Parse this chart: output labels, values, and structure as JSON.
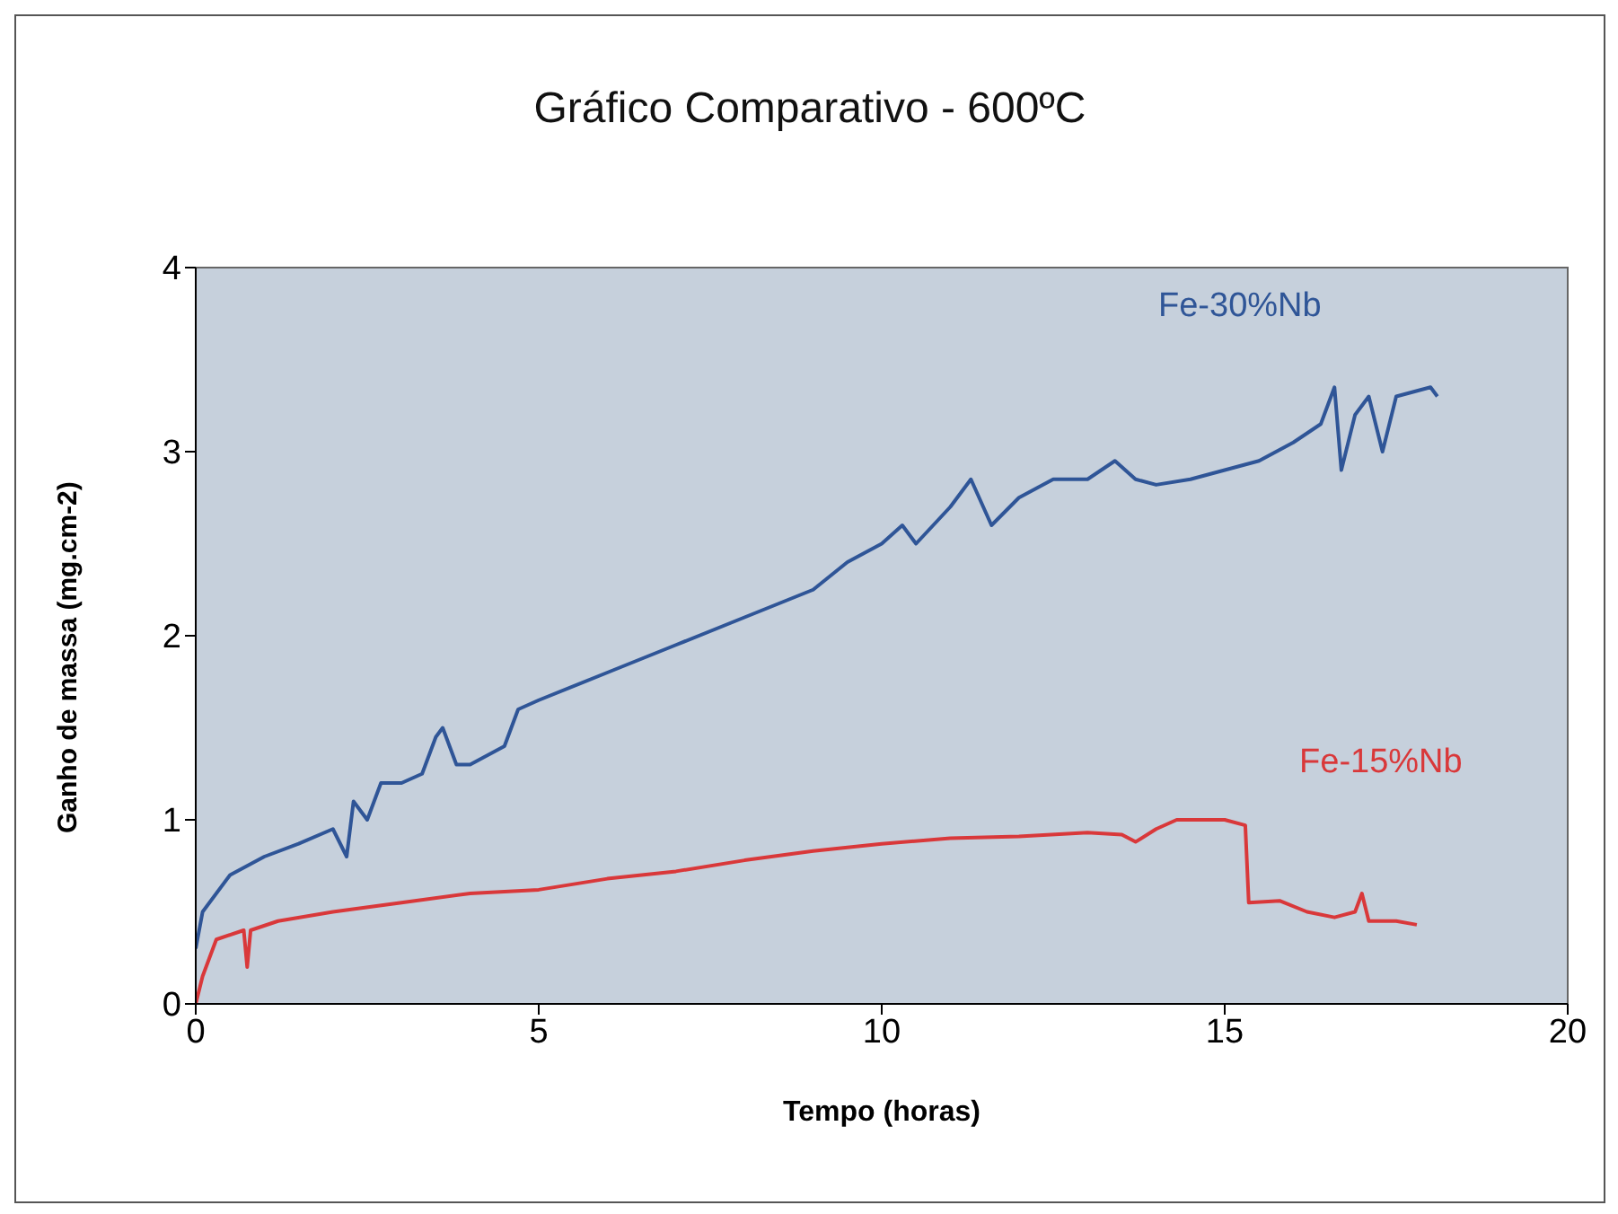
{
  "chart_data": {
    "type": "line",
    "title": "Gráfico Comparativo - 600ºC",
    "xlabel": "Tempo (horas)",
    "ylabel": "Ganho de massa  (mg.cm-2)",
    "xlim": [
      0,
      20
    ],
    "xticks": [
      0,
      5,
      10,
      15,
      20
    ],
    "ylim": [
      0,
      4
    ],
    "yticks": [
      0,
      1,
      2,
      3,
      4
    ],
    "legend": false,
    "marker": "none",
    "line_style": "solid",
    "series": [
      {
        "name": "Fe-30%Nb",
        "color": "#2f5597",
        "x": [
          0,
          0.1,
          0.5,
          1,
          1.5,
          2,
          2.2,
          2.3,
          2.5,
          2.7,
          3,
          3.3,
          3.5,
          3.6,
          3.8,
          4,
          4.5,
          4.7,
          5,
          6,
          7,
          8,
          9,
          9.5,
          10,
          10.3,
          10.5,
          11,
          11.3,
          11.6,
          12,
          12.5,
          13,
          13.4,
          13.7,
          14,
          14.5,
          15,
          15.5,
          16,
          16.4,
          16.6,
          16.7,
          16.9,
          17.1,
          17.3,
          17.5,
          18,
          18.1
        ],
        "values": [
          0.3,
          0.5,
          0.7,
          0.8,
          0.87,
          0.95,
          0.8,
          1.1,
          1.0,
          1.2,
          1.2,
          1.25,
          1.45,
          1.5,
          1.3,
          1.3,
          1.4,
          1.6,
          1.65,
          1.8,
          1.95,
          2.1,
          2.25,
          2.4,
          2.5,
          2.6,
          2.5,
          2.7,
          2.85,
          2.6,
          2.75,
          2.85,
          2.85,
          2.95,
          2.85,
          2.82,
          2.85,
          2.9,
          2.95,
          3.05,
          3.15,
          3.35,
          2.9,
          3.2,
          3.3,
          3.0,
          3.3,
          3.35,
          3.3
        ]
      },
      {
        "name": "Fe-15%Nb",
        "color": "#d9383a",
        "x": [
          0,
          0.1,
          0.3,
          0.7,
          0.75,
          0.8,
          1.2,
          2,
          3,
          4,
          5,
          6,
          7,
          8,
          9,
          10,
          11,
          12,
          13,
          13.5,
          13.7,
          14,
          14.3,
          15,
          15.3,
          15.35,
          15.8,
          16.2,
          16.6,
          16.9,
          17,
          17.1,
          17.5,
          17.8
        ],
        "values": [
          0,
          0.15,
          0.35,
          0.4,
          0.2,
          0.4,
          0.45,
          0.5,
          0.55,
          0.6,
          0.62,
          0.68,
          0.72,
          0.78,
          0.83,
          0.87,
          0.9,
          0.91,
          0.93,
          0.92,
          0.88,
          0.95,
          1.0,
          1.0,
          0.97,
          0.55,
          0.56,
          0.5,
          0.47,
          0.5,
          0.6,
          0.45,
          0.45,
          0.43
        ]
      }
    ]
  }
}
